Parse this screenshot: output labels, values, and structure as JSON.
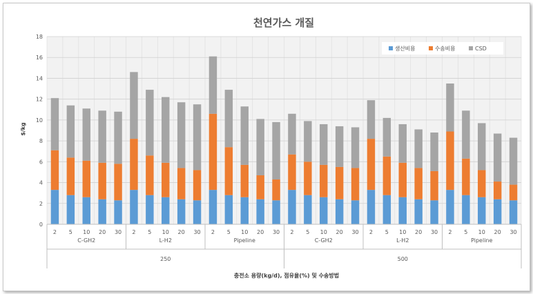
{
  "chart_data": {
    "type": "bar",
    "stacked": true,
    "title": "천연가스 개질",
    "xlabel": "충전소 용량(kg/d), 점유율(%) 및 수송방법",
    "ylabel": "$/kg",
    "ylim": [
      0,
      18
    ],
    "yticks": [
      0,
      2,
      4,
      6,
      8,
      10,
      12,
      14,
      16,
      18
    ],
    "grid": true,
    "legend_position": "top-right",
    "colors": [
      "#5B9BD5",
      "#ED7D31",
      "#A5A5A5"
    ],
    "categories": [
      "2",
      "5",
      "10",
      "20",
      "30",
      "2",
      "5",
      "10",
      "20",
      "30",
      "2",
      "5",
      "10",
      "20",
      "30",
      "2",
      "5",
      "10",
      "20",
      "30",
      "2",
      "5",
      "10",
      "20",
      "30",
      "2",
      "5",
      "10",
      "20",
      "30"
    ],
    "group_level1": [
      "C-GH2",
      "L-H2",
      "Pipeline",
      "C-GH2",
      "L-H2",
      "Pipeline"
    ],
    "group_level2": [
      "250",
      "500"
    ],
    "series": [
      {
        "name": "생산비용",
        "values": [
          3.3,
          2.8,
          2.6,
          2.4,
          2.3,
          3.3,
          2.8,
          2.6,
          2.4,
          2.3,
          3.3,
          2.8,
          2.6,
          2.4,
          2.3,
          3.3,
          2.8,
          2.6,
          2.4,
          2.3,
          3.3,
          2.8,
          2.6,
          2.4,
          2.3,
          3.3,
          2.8,
          2.6,
          2.4,
          2.3
        ]
      },
      {
        "name": "수송비용",
        "values": [
          3.8,
          3.6,
          3.5,
          3.5,
          3.5,
          4.9,
          3.8,
          3.3,
          3.0,
          2.9,
          7.3,
          4.6,
          3.1,
          2.3,
          2.0,
          3.4,
          3.2,
          3.1,
          3.1,
          3.1,
          4.9,
          3.7,
          3.3,
          3.0,
          2.8,
          5.6,
          3.5,
          2.6,
          1.7,
          1.5
        ]
      },
      {
        "name": "CSD",
        "values": [
          5.0,
          5.0,
          5.0,
          5.0,
          5.0,
          6.4,
          6.3,
          6.3,
          6.3,
          6.3,
          5.5,
          5.5,
          5.6,
          5.4,
          5.5,
          3.9,
          3.9,
          3.9,
          3.9,
          3.9,
          3.7,
          3.7,
          3.7,
          3.7,
          3.7,
          4.6,
          4.6,
          4.5,
          4.6,
          4.5
        ]
      }
    ]
  }
}
